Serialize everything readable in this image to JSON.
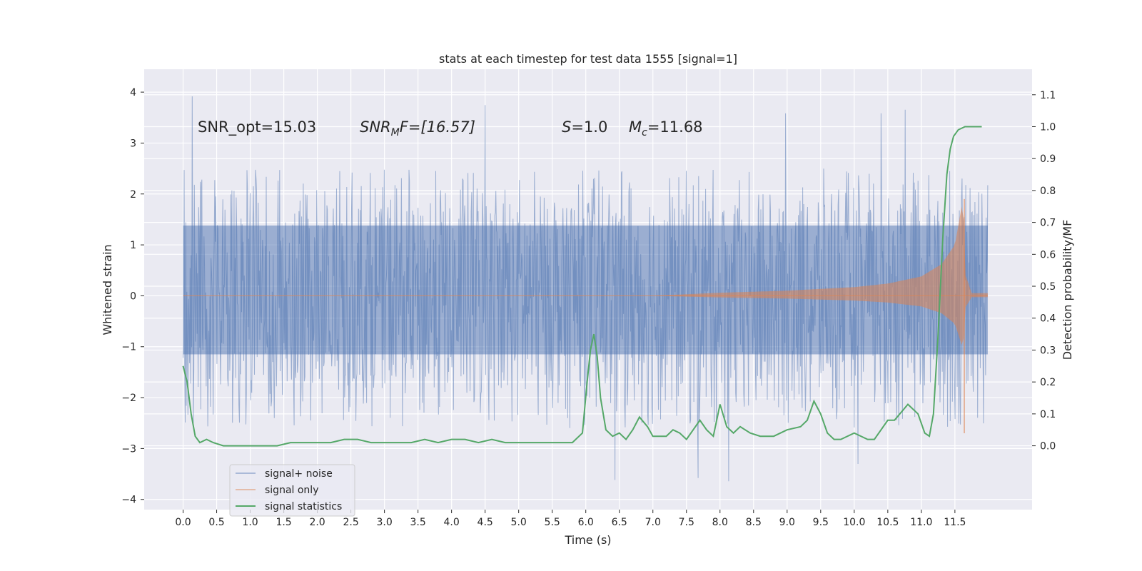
{
  "chart_data": {
    "type": "line",
    "title": "stats at each timestep for test data 1555 [signal=1]",
    "xlabel": "Time (s)",
    "ylabel": "Whitened strain",
    "y2label": "Detection probability/MF",
    "xlim": [
      -0.58,
      12.65
    ],
    "ylim": [
      -4.2,
      4.45
    ],
    "y2lim": [
      -0.2,
      1.18
    ],
    "x_ticks": [
      "0.0",
      "0.5",
      "1.0",
      "1.5",
      "2.0",
      "2.5",
      "3.0",
      "3.5",
      "4.0",
      "4.5",
      "5.0",
      "5.5",
      "6.0",
      "6.5",
      "7.0",
      "7.5",
      "8.0",
      "8.5",
      "9.0",
      "9.5",
      "10.0",
      "10.5",
      "11.0",
      "11.5"
    ],
    "y_ticks": [
      "4",
      "3",
      "2",
      "1",
      "0",
      "−1",
      "−2",
      "−3",
      "−4"
    ],
    "y2_ticks": [
      "1.1",
      "1.0",
      "0.9",
      "0.8",
      "0.7",
      "0.6",
      "0.5",
      "0.4",
      "0.3",
      "0.2",
      "0.1",
      "0.0"
    ],
    "grid": true,
    "legend_placement": "lower-left",
    "annotations": {
      "snr_opt": "SNR_opt=15.03",
      "snr_mf_name": "SNR",
      "snr_mf_sub": "M",
      "snr_mf_rest": "F=[16.57]",
      "s_name": "S",
      "s_rest": "=1.0",
      "mc_name": "M",
      "mc_sub": "c",
      "mc_rest": "=11.68"
    },
    "series": [
      {
        "name": "signal+ noise",
        "color": "#4c72b0",
        "t_start": 0.0,
        "t_end": 11.99,
        "band_lower": -1.15,
        "band_upper": 1.38,
        "typical_min": -2.6,
        "typical_max": 2.5,
        "peak_max": 4.1,
        "peak_min": -3.8
      },
      {
        "name": "signal only",
        "color": "#dd8452",
        "t_start": 0.0,
        "t_end": 11.99,
        "amplitude_envelope": [
          [
            0.0,
            0.0
          ],
          [
            7.0,
            0.0
          ],
          [
            8.0,
            0.06
          ],
          [
            9.0,
            0.1
          ],
          [
            10.0,
            0.17
          ],
          [
            10.5,
            0.24
          ],
          [
            11.0,
            0.38
          ],
          [
            11.3,
            0.62
          ],
          [
            11.5,
            1.0
          ],
          [
            11.62,
            1.9
          ],
          [
            11.66,
            0.4
          ],
          [
            11.75,
            0.05
          ]
        ]
      },
      {
        "name": "signal statistics",
        "color": "#55a868",
        "t": [
          0.0,
          0.06,
          0.12,
          0.18,
          0.25,
          0.35,
          0.45,
          0.6,
          0.8,
          1.0,
          1.2,
          1.4,
          1.6,
          1.8,
          2.0,
          2.2,
          2.4,
          2.6,
          2.8,
          3.0,
          3.2,
          3.4,
          3.6,
          3.8,
          4.0,
          4.2,
          4.4,
          4.6,
          4.8,
          5.0,
          5.2,
          5.4,
          5.6,
          5.8,
          5.95,
          6.02,
          6.07,
          6.12,
          6.17,
          6.22,
          6.3,
          6.4,
          6.5,
          6.6,
          6.7,
          6.8,
          6.92,
          7.0,
          7.1,
          7.2,
          7.3,
          7.4,
          7.5,
          7.6,
          7.7,
          7.8,
          7.9,
          8.0,
          8.1,
          8.2,
          8.3,
          8.45,
          8.6,
          8.8,
          9.0,
          9.2,
          9.3,
          9.4,
          9.5,
          9.6,
          9.7,
          9.8,
          10.0,
          10.2,
          10.3,
          10.4,
          10.5,
          10.6,
          10.8,
          10.95,
          11.05,
          11.12,
          11.18,
          11.25,
          11.32,
          11.38,
          11.43,
          11.48,
          11.55,
          11.65,
          11.8,
          11.9
        ],
        "values": [
          0.25,
          0.2,
          0.1,
          0.03,
          0.01,
          0.02,
          0.01,
          0.0,
          0.0,
          0.0,
          0.0,
          0.0,
          0.01,
          0.01,
          0.01,
          0.01,
          0.02,
          0.02,
          0.01,
          0.01,
          0.01,
          0.01,
          0.02,
          0.01,
          0.02,
          0.02,
          0.01,
          0.02,
          0.01,
          0.01,
          0.01,
          0.01,
          0.01,
          0.01,
          0.04,
          0.2,
          0.3,
          0.35,
          0.28,
          0.15,
          0.05,
          0.03,
          0.04,
          0.02,
          0.05,
          0.09,
          0.06,
          0.03,
          0.03,
          0.03,
          0.05,
          0.04,
          0.02,
          0.05,
          0.08,
          0.05,
          0.03,
          0.13,
          0.06,
          0.04,
          0.06,
          0.04,
          0.03,
          0.03,
          0.05,
          0.06,
          0.08,
          0.14,
          0.1,
          0.04,
          0.02,
          0.02,
          0.04,
          0.02,
          0.02,
          0.05,
          0.08,
          0.08,
          0.13,
          0.1,
          0.04,
          0.03,
          0.1,
          0.35,
          0.65,
          0.85,
          0.93,
          0.97,
          0.99,
          1.0,
          1.0,
          1.0
        ]
      }
    ]
  }
}
